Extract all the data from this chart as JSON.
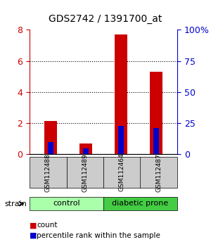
{
  "title": "GDS2742 / 1391700_at",
  "samples": [
    "GSM112488",
    "GSM112489",
    "GSM112464",
    "GSM112487"
  ],
  "group_labels": [
    "control",
    "diabetic prone"
  ],
  "red_values": [
    2.15,
    0.7,
    7.7,
    5.3
  ],
  "blue_values": [
    0.8,
    0.4,
    1.85,
    1.7
  ],
  "left_ylim": [
    0,
    8
  ],
  "right_ylim": [
    0,
    100
  ],
  "left_yticks": [
    0,
    2,
    4,
    6,
    8
  ],
  "right_yticks": [
    0,
    25,
    50,
    75,
    100
  ],
  "right_yticklabels": [
    "0",
    "25",
    "50",
    "75",
    "100%"
  ],
  "bar_width": 0.35,
  "bar_color_red": "#cc0000",
  "bar_color_blue": "#0000cc",
  "axis_color_red": "#cc0000",
  "axis_color_blue": "#0000cc",
  "label_count": "count",
  "label_percentile": "percentile rank within the sample",
  "sample_box_color": "#cccccc",
  "control_color": "#aaffaa",
  "diabetic_color": "#44cc44",
  "strain_label": "strain"
}
